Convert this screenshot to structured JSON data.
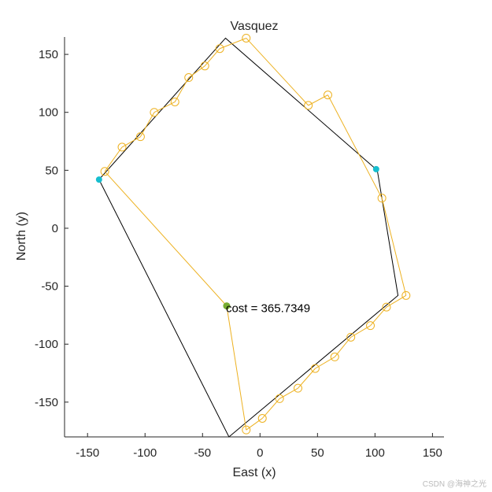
{
  "chart_data": {
    "type": "scatter",
    "title": "Vasquez",
    "xlabel": "East (x)",
    "ylabel": "North (y)",
    "xlim": [
      -170,
      160
    ],
    "ylim": [
      -180,
      165
    ],
    "xticks": [
      -150,
      -100,
      -50,
      0,
      50,
      100,
      150
    ],
    "yticks": [
      -150,
      -100,
      -50,
      0,
      50,
      100,
      150
    ],
    "boundary": [
      [
        -30,
        164
      ],
      [
        -140,
        42
      ],
      [
        -27,
        -180
      ],
      [
        120,
        -58
      ],
      [
        102,
        50
      ]
    ],
    "sensors": [
      [
        -140,
        42
      ],
      [
        101,
        51
      ]
    ],
    "start_point": [
      -29,
      -67
    ],
    "path": [
      [
        -29,
        -67
      ],
      [
        -135,
        49
      ],
      [
        -120,
        70
      ],
      [
        -104,
        79
      ],
      [
        -92,
        100
      ],
      [
        -74,
        109
      ],
      [
        -62,
        130
      ],
      [
        -48,
        140
      ],
      [
        -35,
        155
      ],
      [
        -12,
        164
      ],
      [
        42,
        106
      ],
      [
        59,
        115
      ],
      [
        106,
        26
      ],
      [
        127,
        -58
      ],
      [
        110,
        -68
      ],
      [
        96,
        -84
      ],
      [
        79,
        -94
      ],
      [
        65,
        -111
      ],
      [
        48,
        -121
      ],
      [
        33,
        -138
      ],
      [
        17,
        -147
      ],
      [
        2,
        -164
      ],
      [
        -12,
        -174
      ],
      [
        -29,
        -67
      ]
    ],
    "annotation": {
      "text": "cost = 365.7349",
      "x": -29,
      "y": -67
    },
    "colors": {
      "path": "#EDB120",
      "boundary": "#000000",
      "sensor": "#17BECF",
      "start": "#77AC30",
      "axis": "#262626"
    },
    "grid": false,
    "legend": "none"
  },
  "watermark": "CSDN @海神之光"
}
